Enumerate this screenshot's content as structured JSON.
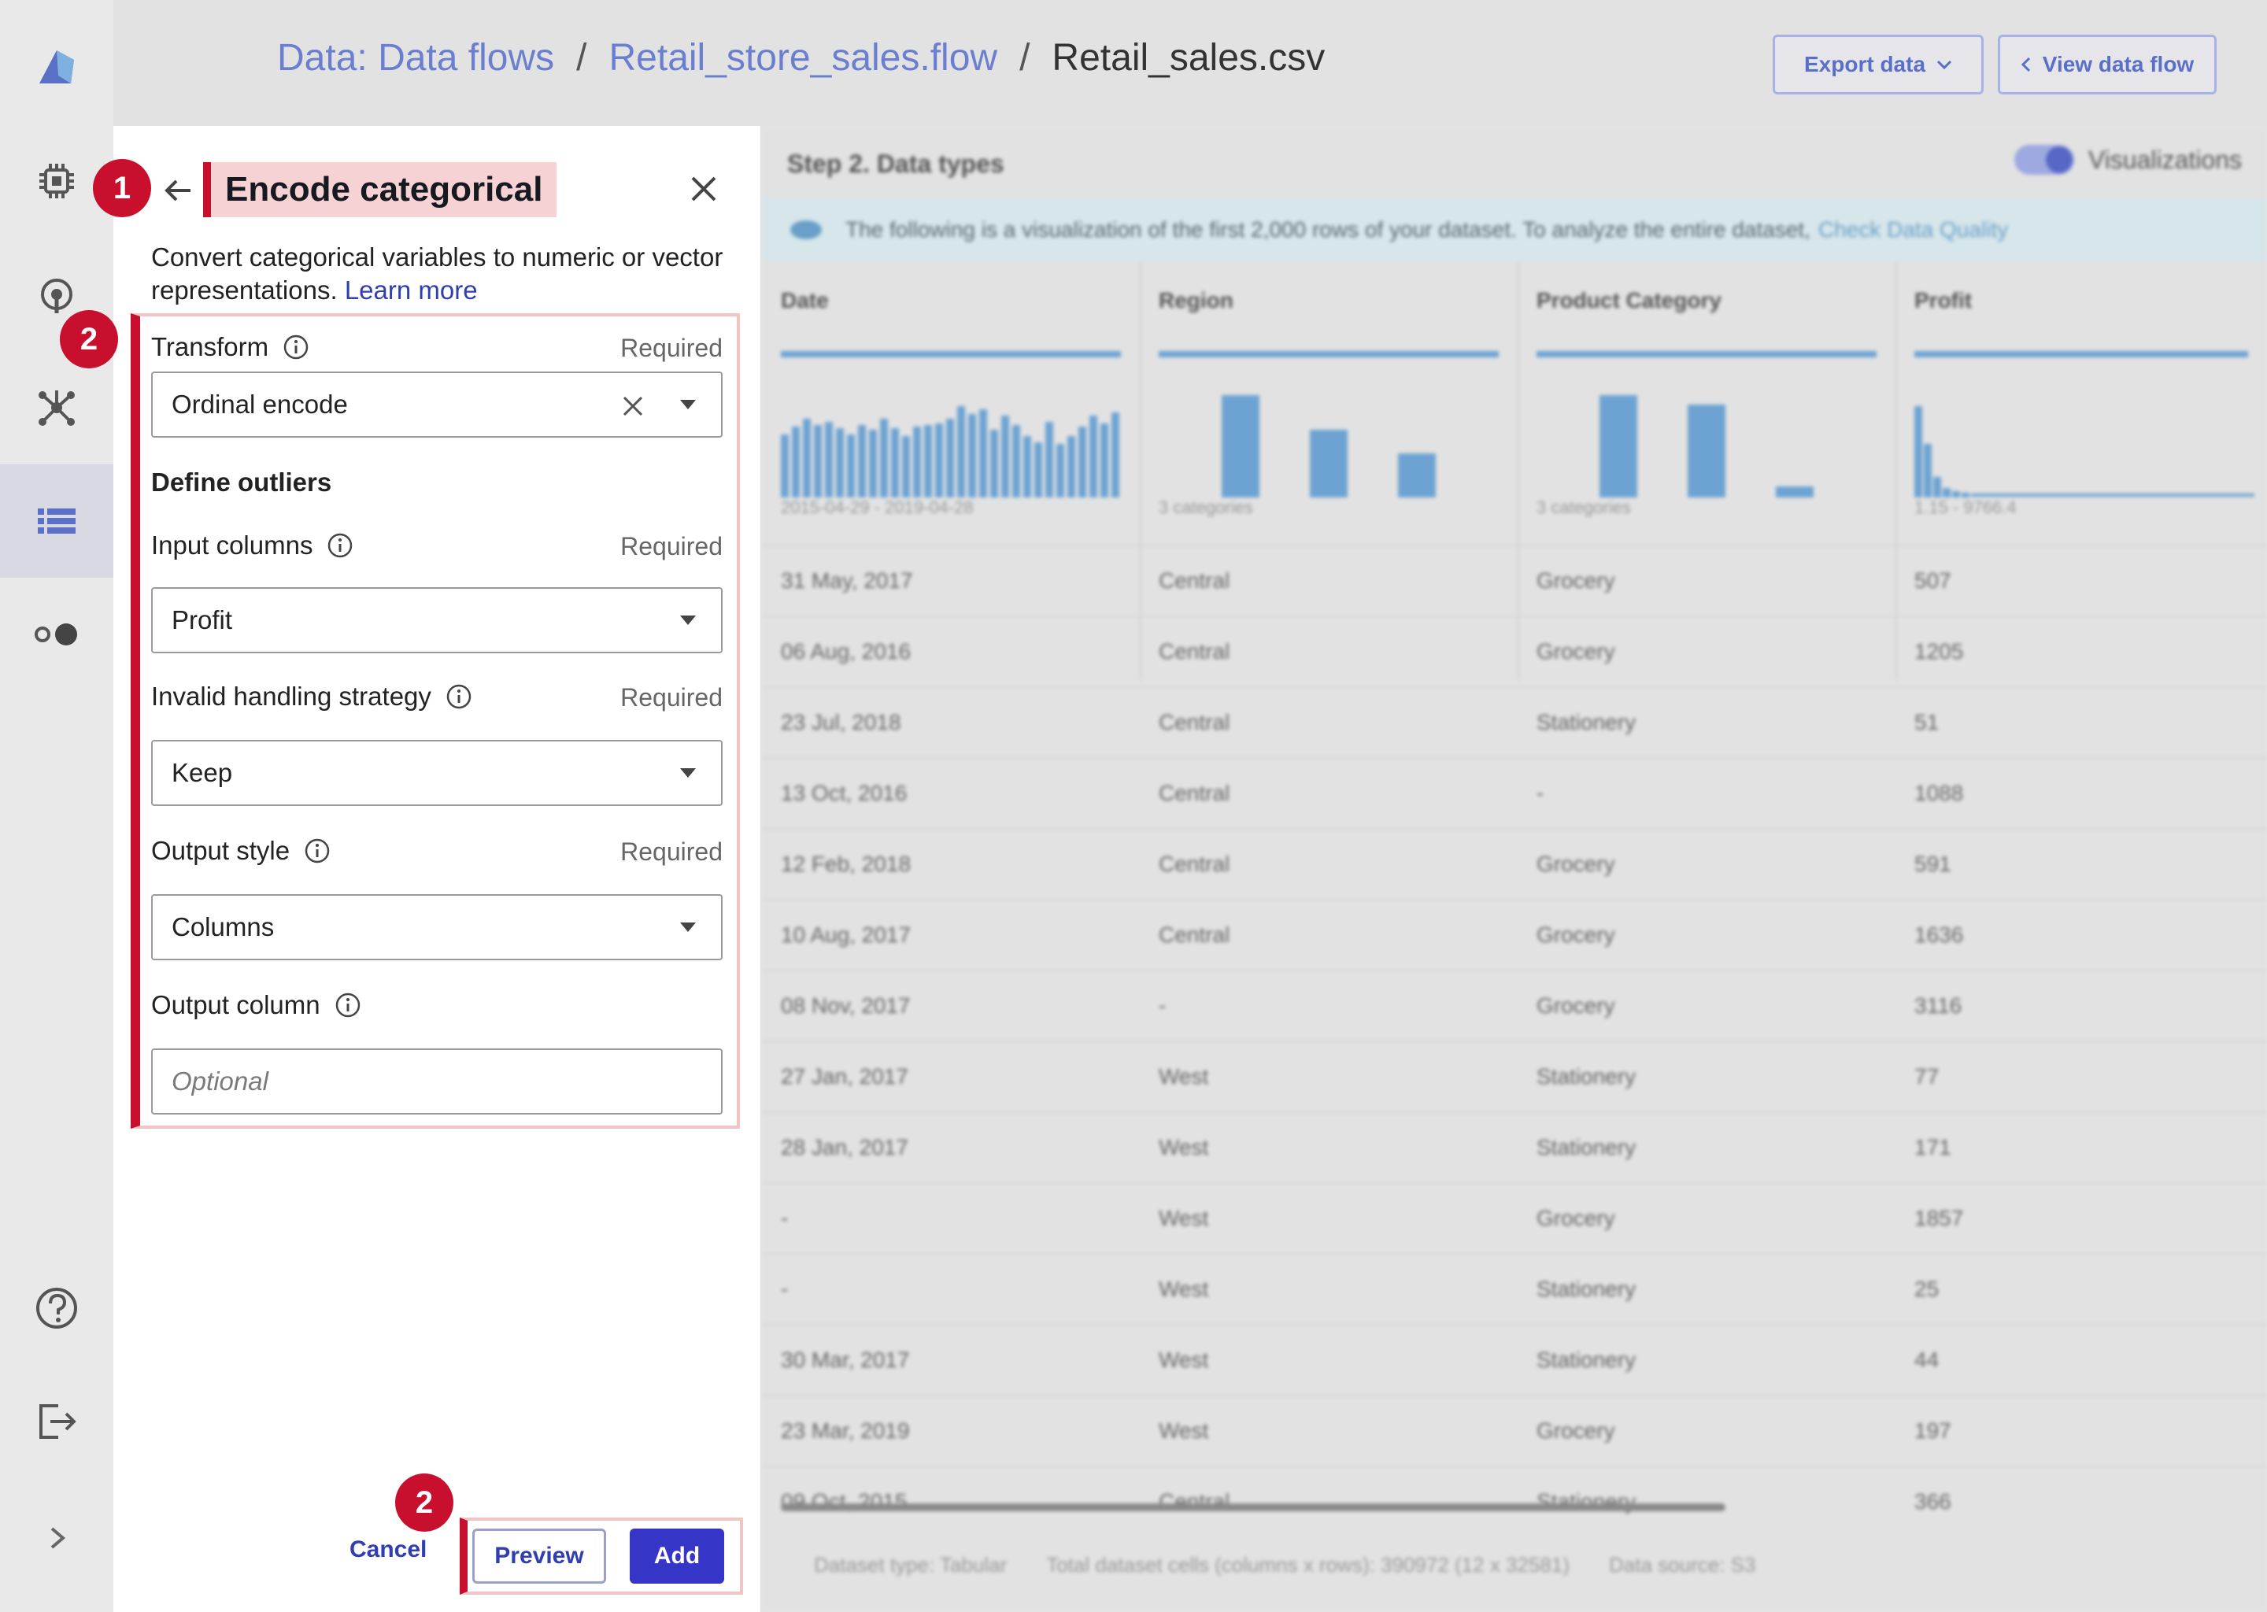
{
  "breadcrumb": {
    "items": [
      "Data: Data flows",
      "Retail_store_sales.flow",
      "Retail_sales.csv"
    ],
    "separator": "/"
  },
  "header_buttons": {
    "export": "Export data",
    "view": "View data flow"
  },
  "rail_icons": [
    "app-logo-icon",
    "chip-icon",
    "deploy-icon",
    "network-icon",
    "list-icon",
    "toggle-icon",
    "help-icon",
    "sign-out-icon",
    "expand-icon"
  ],
  "panel": {
    "title": "Encode categorical",
    "description": "Convert categorical variables to numeric or vector representations.",
    "learn_more": "Learn more",
    "transform": {
      "label": "Transform",
      "required": "Required",
      "value": "Ordinal encode"
    },
    "section": "Define outliers",
    "input_columns": {
      "label": "Input columns",
      "required": "Required",
      "value": "Profit"
    },
    "invalid_handling": {
      "label": "Invalid handling strategy",
      "required": "Required",
      "value": "Keep"
    },
    "output_style": {
      "label": "Output style",
      "required": "Required",
      "value": "Columns"
    },
    "output_column": {
      "label": "Output column",
      "placeholder": "Optional"
    },
    "buttons": {
      "cancel": "Cancel",
      "preview": "Preview",
      "add": "Add"
    }
  },
  "annotations": {
    "badge1": "1",
    "badge2": "2",
    "badge3": "2"
  },
  "main": {
    "step_title": "Step 2. Data types",
    "visualizations_label": "Visualizations",
    "banner_text": "The following is a visualization of the first 2,000 rows of your dataset. To analyze the entire dataset,",
    "banner_link": "Check Data Quality",
    "columns": [
      {
        "name": "Date",
        "range": "2015-04-29 - 2019-04-28"
      },
      {
        "name": "Region",
        "range": "3 categories"
      },
      {
        "name": "Product Category",
        "range": "3 categories"
      },
      {
        "name": "Profit",
        "range": "1.15 - 9766.4"
      }
    ],
    "rows": [
      [
        "31 May, 2017",
        "Central",
        "Grocery",
        "507"
      ],
      [
        "06 Aug, 2016",
        "Central",
        "Grocery",
        "1205"
      ],
      [
        "23 Jul, 2018",
        "Central",
        "Stationery",
        "51"
      ],
      [
        "13 Oct, 2016",
        "Central",
        "-",
        "1088"
      ],
      [
        "12 Feb, 2018",
        "Central",
        "Grocery",
        "591"
      ],
      [
        "10 Aug, 2017",
        "Central",
        "Grocery",
        "1636"
      ],
      [
        "08 Nov, 2017",
        "-",
        "Grocery",
        "3116"
      ],
      [
        "27 Jan, 2017",
        "West",
        "Stationery",
        "77"
      ],
      [
        "28 Jan, 2017",
        "West",
        "Stationery",
        "171"
      ],
      [
        "-",
        "West",
        "Grocery",
        "1857"
      ],
      [
        "-",
        "West",
        "Stationery",
        "25"
      ],
      [
        "30 Mar, 2017",
        "West",
        "Stationery",
        "44"
      ],
      [
        "23 Mar, 2019",
        "West",
        "Grocery",
        "197"
      ],
      [
        "09 Oct, 2015",
        "Central",
        "Stationery",
        "366"
      ]
    ],
    "footer": [
      "Dataset type: Tabular",
      "Total dataset cells (columns x rows): 390972 (12 x 32581)",
      "Data source: S3"
    ]
  },
  "colors": {
    "accent": "#3535c8",
    "annotation": "#c8102e",
    "highlight": "#f7d2d4",
    "chart": "#6da3d2"
  }
}
